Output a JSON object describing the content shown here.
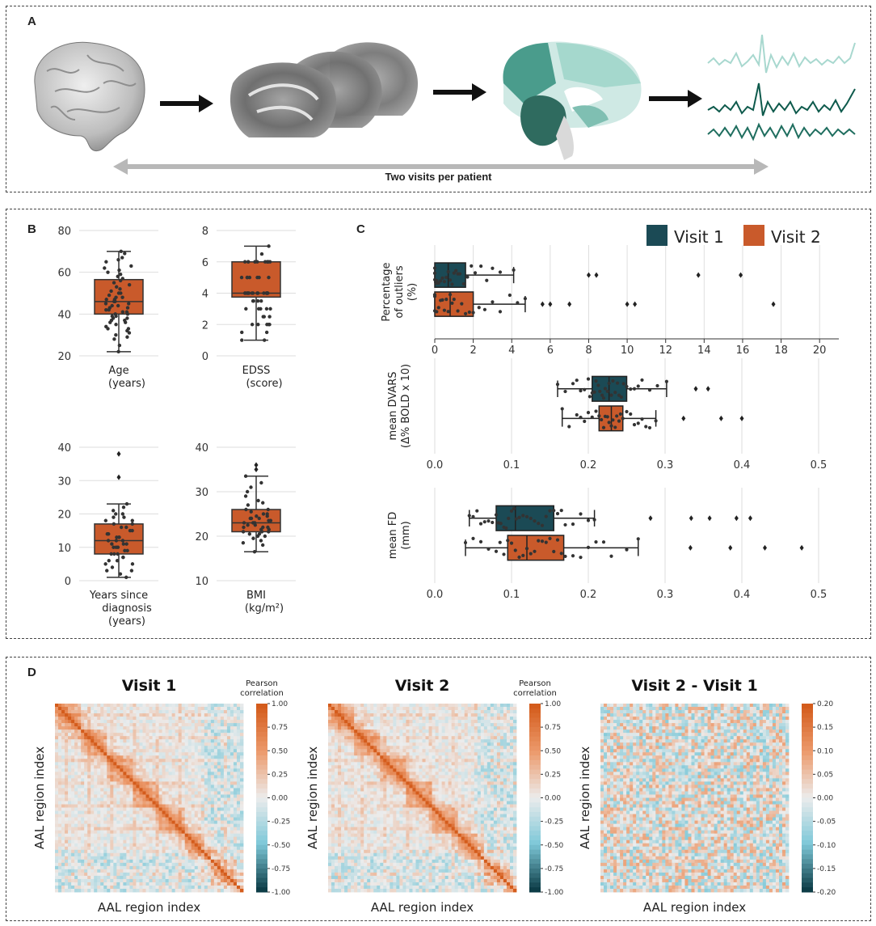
{
  "panel_labels": {
    "a": "A",
    "b": "B",
    "c": "C",
    "d": "D"
  },
  "panel_a": {
    "caption": "Two visits per patient",
    "steps": [
      "brain-3d-render",
      "mri-slices",
      "parcellation-atlas",
      "bold-timeseries"
    ]
  },
  "chart_data": [
    {
      "type": "box",
      "id": "age",
      "xlabel": [
        "Age",
        "(years)"
      ],
      "ylim": [
        20,
        80
      ],
      "yticks": [
        20,
        40,
        60,
        80
      ],
      "box": {
        "whisker_low": 22,
        "q1": 40,
        "median": 46,
        "q3": 56.5,
        "whisker_high": 70
      },
      "outliers": [],
      "points": [
        22,
        25,
        28,
        29,
        30,
        31,
        32,
        33,
        33,
        34,
        35,
        36,
        36,
        37,
        37,
        38,
        38,
        39,
        39,
        40,
        40,
        41,
        41,
        42,
        42,
        43,
        43,
        44,
        44,
        45,
        45,
        46,
        46,
        47,
        47,
        48,
        48,
        49,
        50,
        50,
        51,
        52,
        53,
        54,
        55,
        56,
        57,
        58,
        59,
        60,
        61,
        62,
        63,
        65,
        66,
        67,
        69,
        70
      ]
    },
    {
      "type": "box",
      "id": "edss",
      "xlabel": [
        "EDSS",
        "(score)"
      ],
      "ylim": [
        0,
        8
      ],
      "yticks": [
        0,
        2,
        4,
        6,
        8
      ],
      "box": {
        "whisker_low": 1,
        "q1": 3.75,
        "median": 4,
        "q3": 6,
        "whisker_high": 7
      },
      "outliers": [],
      "points": [
        1,
        1,
        1.5,
        1.5,
        2,
        2,
        2,
        2,
        2,
        2.5,
        2.5,
        2.5,
        3,
        3,
        3,
        3,
        3,
        3.5,
        3.5,
        3.5,
        3.5,
        4,
        4,
        4,
        4,
        4,
        4,
        4,
        4,
        4,
        4,
        4,
        4,
        4,
        4,
        4,
        4,
        5,
        5,
        5,
        5,
        5,
        5,
        5,
        6,
        6,
        6,
        6,
        6,
        6,
        6,
        6,
        6,
        6,
        6,
        6,
        6.5,
        7
      ]
    },
    {
      "type": "box",
      "id": "years-since-diagnosis",
      "xlabel": [
        "Years since",
        "diagnosis",
        "(years)"
      ],
      "ylim": [
        0,
        40
      ],
      "yticks": [
        0,
        10,
        20,
        30,
        40
      ],
      "box": {
        "whisker_low": 1,
        "q1": 8,
        "median": 12,
        "q3": 17,
        "whisker_high": 23
      },
      "outliers": [
        31,
        38
      ],
      "points": [
        1,
        2,
        3,
        3,
        4,
        5,
        5,
        6,
        6,
        7,
        7,
        8,
        8,
        8,
        9,
        9,
        10,
        10,
        10,
        11,
        11,
        11,
        12,
        12,
        12,
        13,
        13,
        13,
        14,
        14,
        15,
        15,
        16,
        16,
        17,
        17,
        18,
        18,
        19,
        19,
        20,
        20,
        21,
        22,
        23
      ]
    },
    {
      "type": "box",
      "id": "bmi",
      "xlabel": [
        "BMI",
        "(kg/m²)"
      ],
      "ylim": [
        10,
        40
      ],
      "yticks": [
        10,
        20,
        30,
        40
      ],
      "box": {
        "whisker_low": 16.5,
        "q1": 21,
        "median": 23,
        "q3": 26,
        "whisker_high": 33.5
      },
      "outliers": [
        35,
        36
      ],
      "points": [
        16.5,
        18,
        18.5,
        19,
        19.5,
        20,
        20,
        20.5,
        20.5,
        21,
        21,
        21,
        21.5,
        21.5,
        22,
        22,
        22,
        22.5,
        22.5,
        23,
        23,
        23,
        23.5,
        23.5,
        24,
        24,
        24,
        24.5,
        24.5,
        25,
        25,
        25.5,
        26,
        26,
        27,
        27.5,
        28,
        29,
        30,
        31,
        32,
        33.5
      ]
    },
    {
      "type": "horizontal-box",
      "id": "outliers-pct",
      "ylabel": [
        "Percentage",
        "of outliers",
        "(%)"
      ],
      "xlim": [
        0,
        21
      ],
      "xticks": [
        0,
        2,
        4,
        6,
        8,
        10,
        12,
        14,
        16,
        18,
        20
      ],
      "series": [
        {
          "name": "Visit 1",
          "box": {
            "whisker_low": 0,
            "q1": 0,
            "median": 0.7,
            "q3": 1.6,
            "whisker_high": 4.1
          },
          "outliers": [
            8.0,
            8.4,
            13.7,
            15.9
          ],
          "points": [
            0,
            0,
            0,
            0,
            0.1,
            0.1,
            0.2,
            0.3,
            0.4,
            0.5,
            0.6,
            0.7,
            0.8,
            0.9,
            1.0,
            1.1,
            1.2,
            1.3,
            1.5,
            1.7,
            1.9,
            2.1,
            2.4,
            2.7,
            3.0,
            3.4,
            4.1
          ]
        },
        {
          "name": "Visit 2",
          "box": {
            "whisker_low": 0,
            "q1": 0,
            "median": 0.8,
            "q3": 2.0,
            "whisker_high": 4.7
          },
          "outliers": [
            5.6,
            6.0,
            7.0,
            10.0,
            10.4,
            17.6
          ],
          "points": [
            0,
            0,
            0,
            0,
            0.1,
            0.2,
            0.3,
            0.4,
            0.5,
            0.6,
            0.7,
            0.8,
            0.9,
            1.0,
            1.2,
            1.4,
            1.6,
            1.8,
            2.0,
            2.3,
            2.6,
            3.0,
            3.4,
            3.9,
            4.3,
            4.7
          ]
        }
      ]
    },
    {
      "type": "horizontal-box",
      "id": "mean-dvars",
      "ylabel": [
        "mean DVARS",
        "(Δ% BOLD x 10)"
      ],
      "xlim": [
        0.0,
        0.5
      ],
      "xticks": [
        0.0,
        0.1,
        0.2,
        0.3,
        0.4,
        0.5
      ],
      "xtick_labels": [
        "0.0",
        "0.1",
        "0.2",
        "0.3",
        "0.4",
        "0.5"
      ],
      "series": [
        {
          "name": "Visit 1",
          "box": {
            "whisker_low": 0.16,
            "q1": 0.205,
            "median": 0.227,
            "q3": 0.25,
            "whisker_high": 0.302
          },
          "outliers": [
            0.34,
            0.356
          ],
          "points": [
            0.16,
            0.17,
            0.18,
            0.185,
            0.19,
            0.195,
            0.2,
            0.202,
            0.205,
            0.208,
            0.21,
            0.213,
            0.215,
            0.218,
            0.22,
            0.222,
            0.225,
            0.227,
            0.23,
            0.232,
            0.235,
            0.238,
            0.24,
            0.243,
            0.246,
            0.25,
            0.255,
            0.26,
            0.265,
            0.27,
            0.28,
            0.29,
            0.302
          ]
        },
        {
          "name": "Visit 2",
          "box": {
            "whisker_low": 0.166,
            "q1": 0.214,
            "median": 0.23,
            "q3": 0.245,
            "whisker_high": 0.288
          },
          "outliers": [
            0.324,
            0.373,
            0.4
          ],
          "points": [
            0.166,
            0.175,
            0.185,
            0.19,
            0.195,
            0.2,
            0.205,
            0.21,
            0.214,
            0.217,
            0.22,
            0.222,
            0.225,
            0.227,
            0.23,
            0.232,
            0.235,
            0.237,
            0.24,
            0.242,
            0.245,
            0.25,
            0.255,
            0.26,
            0.265,
            0.27,
            0.275,
            0.28,
            0.288
          ]
        }
      ]
    },
    {
      "type": "horizontal-box",
      "id": "mean-fd",
      "ylabel": [
        "mean FD",
        "(mm)"
      ],
      "xlim": [
        0.0,
        0.5
      ],
      "xticks": [
        0.0,
        0.1,
        0.2,
        0.3,
        0.4,
        0.5
      ],
      "xtick_labels": [
        "0.0",
        "0.1",
        "0.2",
        "0.3",
        "0.4",
        "0.5"
      ],
      "series": [
        {
          "name": "Visit 1",
          "box": {
            "whisker_low": 0.045,
            "q1": 0.08,
            "median": 0.105,
            "q3": 0.155,
            "whisker_high": 0.208
          },
          "outliers": [
            0.281,
            0.334,
            0.358,
            0.393,
            0.411
          ],
          "points": [
            0.045,
            0.05,
            0.055,
            0.06,
            0.065,
            0.07,
            0.075,
            0.08,
            0.083,
            0.086,
            0.09,
            0.093,
            0.096,
            0.1,
            0.103,
            0.106,
            0.11,
            0.115,
            0.12,
            0.125,
            0.13,
            0.135,
            0.14,
            0.145,
            0.15,
            0.155,
            0.16,
            0.165,
            0.17,
            0.18,
            0.19,
            0.2,
            0.208
          ]
        },
        {
          "name": "Visit 2",
          "box": {
            "whisker_low": 0.04,
            "q1": 0.095,
            "median": 0.12,
            "q3": 0.168,
            "whisker_high": 0.265
          },
          "outliers": [
            0.333,
            0.385,
            0.43,
            0.478
          ],
          "points": [
            0.04,
            0.05,
            0.06,
            0.07,
            0.08,
            0.085,
            0.09,
            0.095,
            0.1,
            0.105,
            0.11,
            0.115,
            0.12,
            0.125,
            0.13,
            0.135,
            0.14,
            0.145,
            0.15,
            0.155,
            0.16,
            0.165,
            0.17,
            0.18,
            0.19,
            0.2,
            0.21,
            0.22,
            0.23,
            0.25,
            0.265
          ]
        }
      ]
    },
    {
      "type": "heatmap",
      "id": "visit-1-matrix",
      "title": "Visit 1",
      "xlabel": "AAL region index",
      "ylabel": "AAL region index",
      "colorbar_title": [
        "Pearson",
        "correlation"
      ],
      "clim": [
        -1.0,
        1.0
      ],
      "colorbar_ticks": [
        "1.00",
        "0.75",
        "0.50",
        "0.25",
        "0.00",
        "-0.25",
        "-0.50",
        "-0.75",
        "-1.00"
      ]
    },
    {
      "type": "heatmap",
      "id": "visit-2-matrix",
      "title": "Visit 2",
      "xlabel": "AAL region index",
      "ylabel": "AAL region index",
      "colorbar_title": [
        "Pearson",
        "correlation"
      ],
      "clim": [
        -1.0,
        1.0
      ],
      "colorbar_ticks": [
        "1.00",
        "0.75",
        "0.50",
        "0.25",
        "0.00",
        "-0.25",
        "-0.50",
        "-0.75",
        "-1.00"
      ]
    },
    {
      "type": "heatmap",
      "id": "difference-matrix",
      "title": "Visit 2 - Visit 1",
      "xlabel": "AAL region index",
      "ylabel": "AAL region index",
      "clim": [
        -0.2,
        0.2
      ],
      "colorbar_ticks": [
        "0.20",
        "0.15",
        "0.10",
        "0.05",
        "0.00",
        "-0.05",
        "-0.10",
        "-0.15",
        "-0.20"
      ]
    }
  ],
  "legend": [
    {
      "label": "Visit 1",
      "color": "#1b4a55"
    },
    {
      "label": "Visit 2",
      "color": "#c95a2b"
    }
  ],
  "colors": {
    "visit1": "#1b4a55",
    "visit2": "#c95a2b",
    "teal_light": "#a8d8cf",
    "teal_dark": "#0e5a4c"
  }
}
